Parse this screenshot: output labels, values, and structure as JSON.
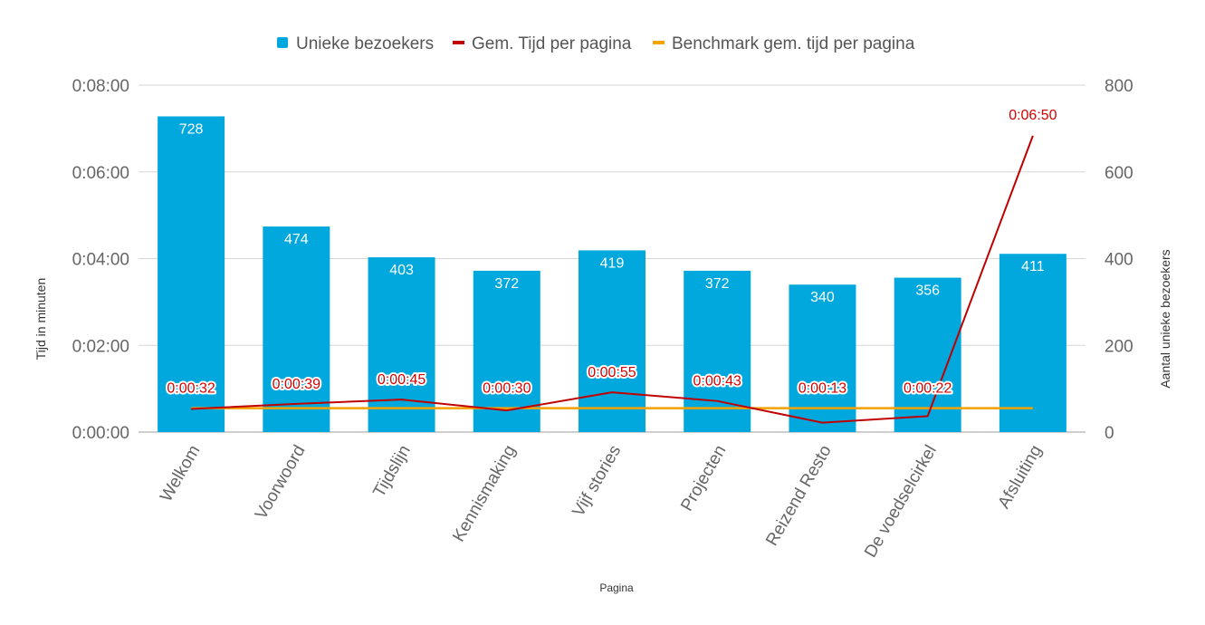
{
  "chart_data": {
    "type": "bar",
    "categories": [
      "Welkom",
      "Voorwoord",
      "Tijdslijn",
      "Kennismaking",
      "Vijf stories",
      "Projecten",
      "Reizend Resto",
      "De voedselcirkel",
      "Afsluiting"
    ],
    "series": [
      {
        "name": "Unieke bezoekers",
        "type": "bar",
        "axis": "right",
        "color": "#00a8de",
        "values": [
          728,
          474,
          403,
          372,
          419,
          372,
          340,
          356,
          411
        ],
        "labels": [
          "728",
          "474",
          "403",
          "372",
          "419",
          "372",
          "340",
          "356",
          "411"
        ]
      },
      {
        "name": "Gem. Tijd per pagina",
        "type": "line",
        "axis": "left",
        "color": "#c00000",
        "values_seconds": [
          32,
          39,
          45,
          30,
          55,
          43,
          13,
          22,
          410
        ],
        "labels": [
          "0:00:32",
          "0:00:39",
          "0:00:45",
          "0:00:30",
          "0:00:55",
          "0:00:43",
          "0:00:13",
          "0:00:22",
          "0:06:50"
        ]
      },
      {
        "name": "Benchmark gem. tijd per pagina",
        "type": "line",
        "axis": "left",
        "color": "#f5a100",
        "values_seconds": [
          33,
          33,
          33,
          33,
          33,
          33,
          33,
          33,
          33
        ]
      }
    ],
    "y_left": {
      "label": "Tijd in minuten",
      "ticks": [
        "0:00:00",
        "0:02:00",
        "0:04:00",
        "0:06:00",
        "0:08:00"
      ],
      "ylim_seconds": [
        0,
        480
      ]
    },
    "y_right": {
      "label": "Aantal unieke bezoekers",
      "ticks": [
        "0",
        "200",
        "400",
        "600",
        "800"
      ],
      "ylim": [
        0,
        800
      ]
    },
    "xlabel": "Pagina",
    "grid": true,
    "legend_position": "top-center"
  }
}
